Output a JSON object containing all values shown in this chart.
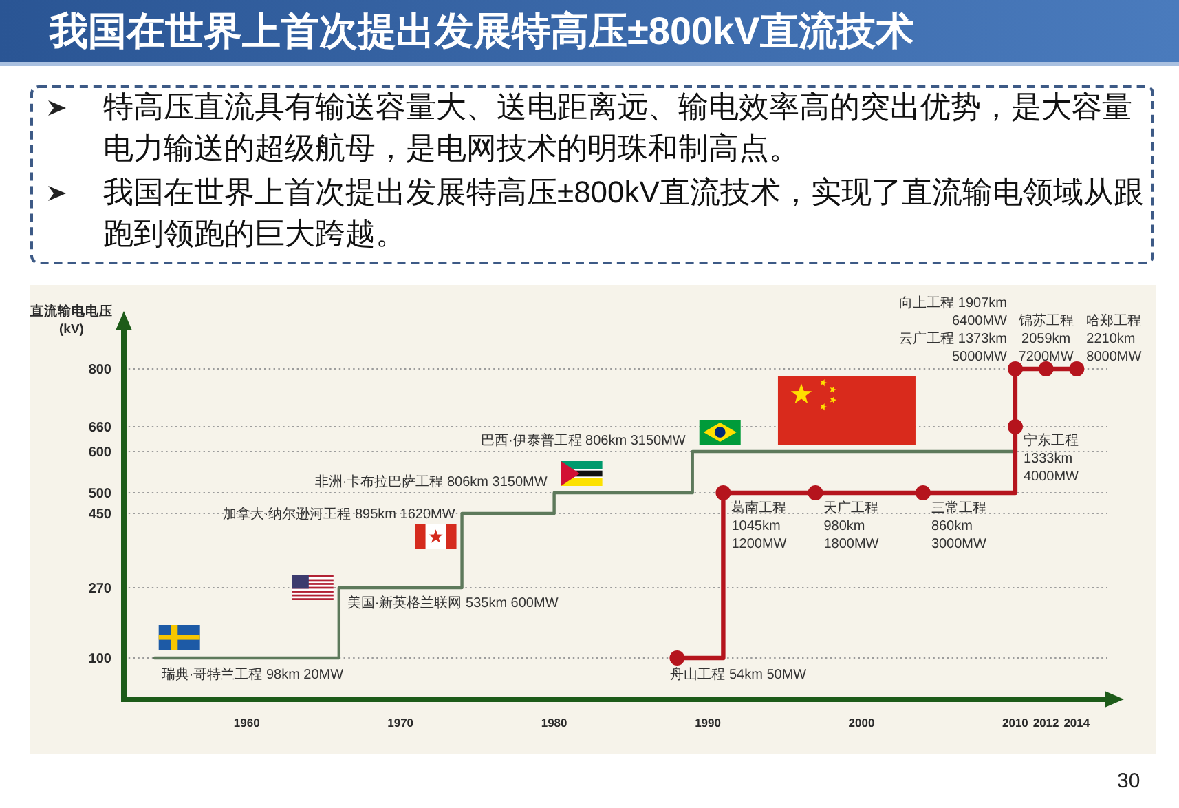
{
  "chart_data": {
    "type": "step",
    "title": "我国在世界上首次提出发展特高压±800kV直流技术",
    "ylabel": "直流输电电压\n(kV)",
    "xlim": [
      1952,
      2016
    ],
    "xticks": [
      1960,
      1970,
      1980,
      1990,
      2000,
      2010,
      2012,
      2014
    ],
    "ylim": [
      0,
      900
    ],
    "yticks": [
      100,
      270,
      450,
      500,
      600,
      660,
      800
    ],
    "grid": "y",
    "series": [
      {
        "color": "#5d795b",
        "marker": "none",
        "x": [
          1954,
          1966,
          1974,
          1980,
          1989,
          2010
        ],
        "values": [
          100,
          270,
          450,
          500,
          600,
          600
        ]
      },
      {
        "color": "#b5141d",
        "marker": "circle",
        "x": [
          1988,
          1991,
          1997,
          2004,
          2010,
          2010,
          2012,
          2014
        ],
        "values": [
          100,
          500,
          500,
          500,
          660,
          800,
          800,
          800
        ]
      }
    ],
    "annotations": [
      "特高压直流具有输送容量大、送电距离远、输电效率高的突出优势，是大容量电力输送的超级航母，是电网技术的明珠和制高点。",
      "我国在世界上首次提出发展特高压±800kV直流技术，实现了直流输电领域从跟跑到领跑的巨大跨越。",
      {
        "text": "瑞典·哥特兰工程 98km 20MW",
        "x": 1954,
        "y": 100
      },
      {
        "text": "美国·新英格兰联网 535km 600MW",
        "x": 1966,
        "y": 270
      },
      {
        "text": "加拿大·纳尔逊河工程 895km 1620MW",
        "x": 1974,
        "y": 450
      },
      {
        "text": "非洲·卡布拉巴萨工程 806km 3150MW",
        "x": 1980,
        "y": 500
      },
      {
        "text": "巴西·伊泰普工程 806km 3150MW",
        "x": 1989,
        "y": 600
      },
      {
        "text": "舟山工程 54km 50MW",
        "x": 1988,
        "y": 100
      },
      {
        "text": "葛南工程\n1045km\n1200MW",
        "x": 1991,
        "y": 500
      },
      {
        "text": "天广工程\n980km\n1800MW",
        "x": 1997,
        "y": 500
      },
      {
        "text": "三常工程\n860km\n3000MW",
        "x": 2004,
        "y": 500
      },
      {
        "text": "宁东工程\n1333km\n4000MW",
        "x": 2010,
        "y": 660
      },
      {
        "text": "向上工程 1907km\n6400MW\n云广工程 1373km\n5000MW",
        "x": 2010,
        "y": 800
      },
      {
        "text": "锦苏工程\n2059km\n7200MW",
        "x": 2012,
        "y": 800
      },
      {
        "text": "哈郑工程\n2210km\n8000MW",
        "x": 2014,
        "y": 800
      },
      "30"
    ]
  }
}
